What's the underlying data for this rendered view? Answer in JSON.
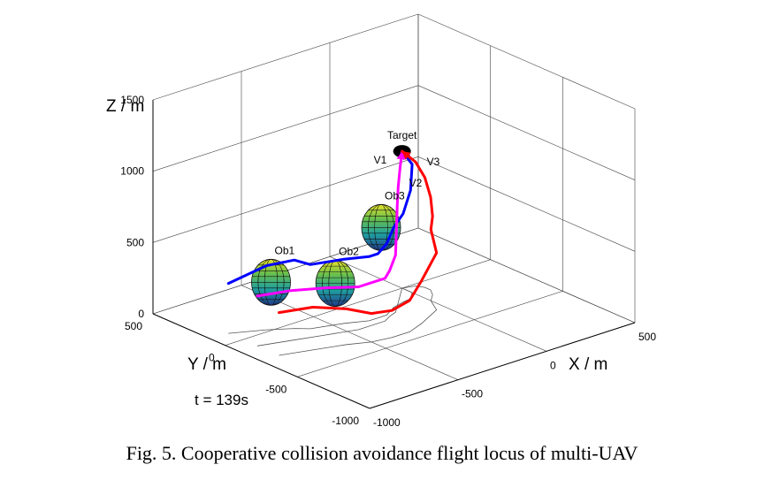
{
  "chart_data": {
    "type": "line3d",
    "title": "",
    "caption": "Fig. 5.   Cooperative collision avoidance flight locus of multi-UAV",
    "time_label": "t = 139s",
    "xlabel": "X / m",
    "ylabel": "Y / m",
    "zlabel": "Z / m",
    "xlim": [
      -1000,
      500
    ],
    "ylim": [
      -1000,
      500
    ],
    "zlim": [
      0,
      1500
    ],
    "xticks": [
      "-1000",
      "-500",
      "0",
      "500"
    ],
    "yticks": [
      "-1000",
      "-500",
      "0",
      "500"
    ],
    "zticks": [
      "0",
      "500",
      "1000",
      "1500"
    ],
    "grid": true,
    "target": {
      "name": "Target",
      "x": 0,
      "y": 0,
      "z": 960
    },
    "obstacles": [
      {
        "name": "Ob1",
        "x": -700,
        "y": 50,
        "z": 300,
        "radius": 130
      },
      {
        "name": "Ob2",
        "x": -500,
        "y": -150,
        "z": 300,
        "radius": 130
      },
      {
        "name": "Ob3",
        "x": -200,
        "y": -100,
        "z": 550,
        "radius": 130
      }
    ],
    "series": [
      {
        "name": "V1",
        "color": "#0000ff",
        "points": [
          [
            -900,
            100,
            350
          ],
          [
            -750,
            20,
            450
          ],
          [
            -650,
            -50,
            480
          ],
          [
            -600,
            -100,
            450
          ],
          [
            -450,
            -150,
            450
          ],
          [
            -350,
            -200,
            450
          ],
          [
            -300,
            -200,
            450
          ],
          [
            -250,
            -200,
            500
          ],
          [
            -170,
            -150,
            560
          ],
          [
            -100,
            -130,
            620
          ],
          [
            -50,
            -120,
            760
          ],
          [
            0,
            -70,
            900
          ],
          [
            0,
            0,
            960
          ]
        ]
      },
      {
        "name": "V2",
        "color": "#ff00ff",
        "points": [
          [
            -900,
            -100,
            350
          ],
          [
            -750,
            -150,
            350
          ],
          [
            -600,
            -200,
            330
          ],
          [
            -450,
            -250,
            300
          ],
          [
            -300,
            -250,
            300
          ],
          [
            -250,
            -220,
            320
          ],
          [
            -200,
            -200,
            400
          ],
          [
            -170,
            -170,
            560
          ],
          [
            -150,
            -150,
            700
          ],
          [
            -120,
            -120,
            810
          ],
          [
            -60,
            -60,
            900
          ],
          [
            0,
            0,
            960
          ]
        ]
      },
      {
        "name": "V3",
        "color": "#ff0000",
        "points": [
          [
            -900,
            -250,
            300
          ],
          [
            -750,
            -300,
            300
          ],
          [
            -600,
            -350,
            250
          ],
          [
            -500,
            -400,
            200
          ],
          [
            -400,
            -420,
            190
          ],
          [
            -300,
            -420,
            220
          ],
          [
            -200,
            -380,
            300
          ],
          [
            -50,
            -300,
            400
          ],
          [
            0,
            -200,
            500
          ],
          [
            50,
            -150,
            550
          ],
          [
            80,
            -100,
            650
          ],
          [
            80,
            -60,
            770
          ],
          [
            60,
            -20,
            870
          ],
          [
            0,
            0,
            960
          ]
        ]
      }
    ]
  }
}
